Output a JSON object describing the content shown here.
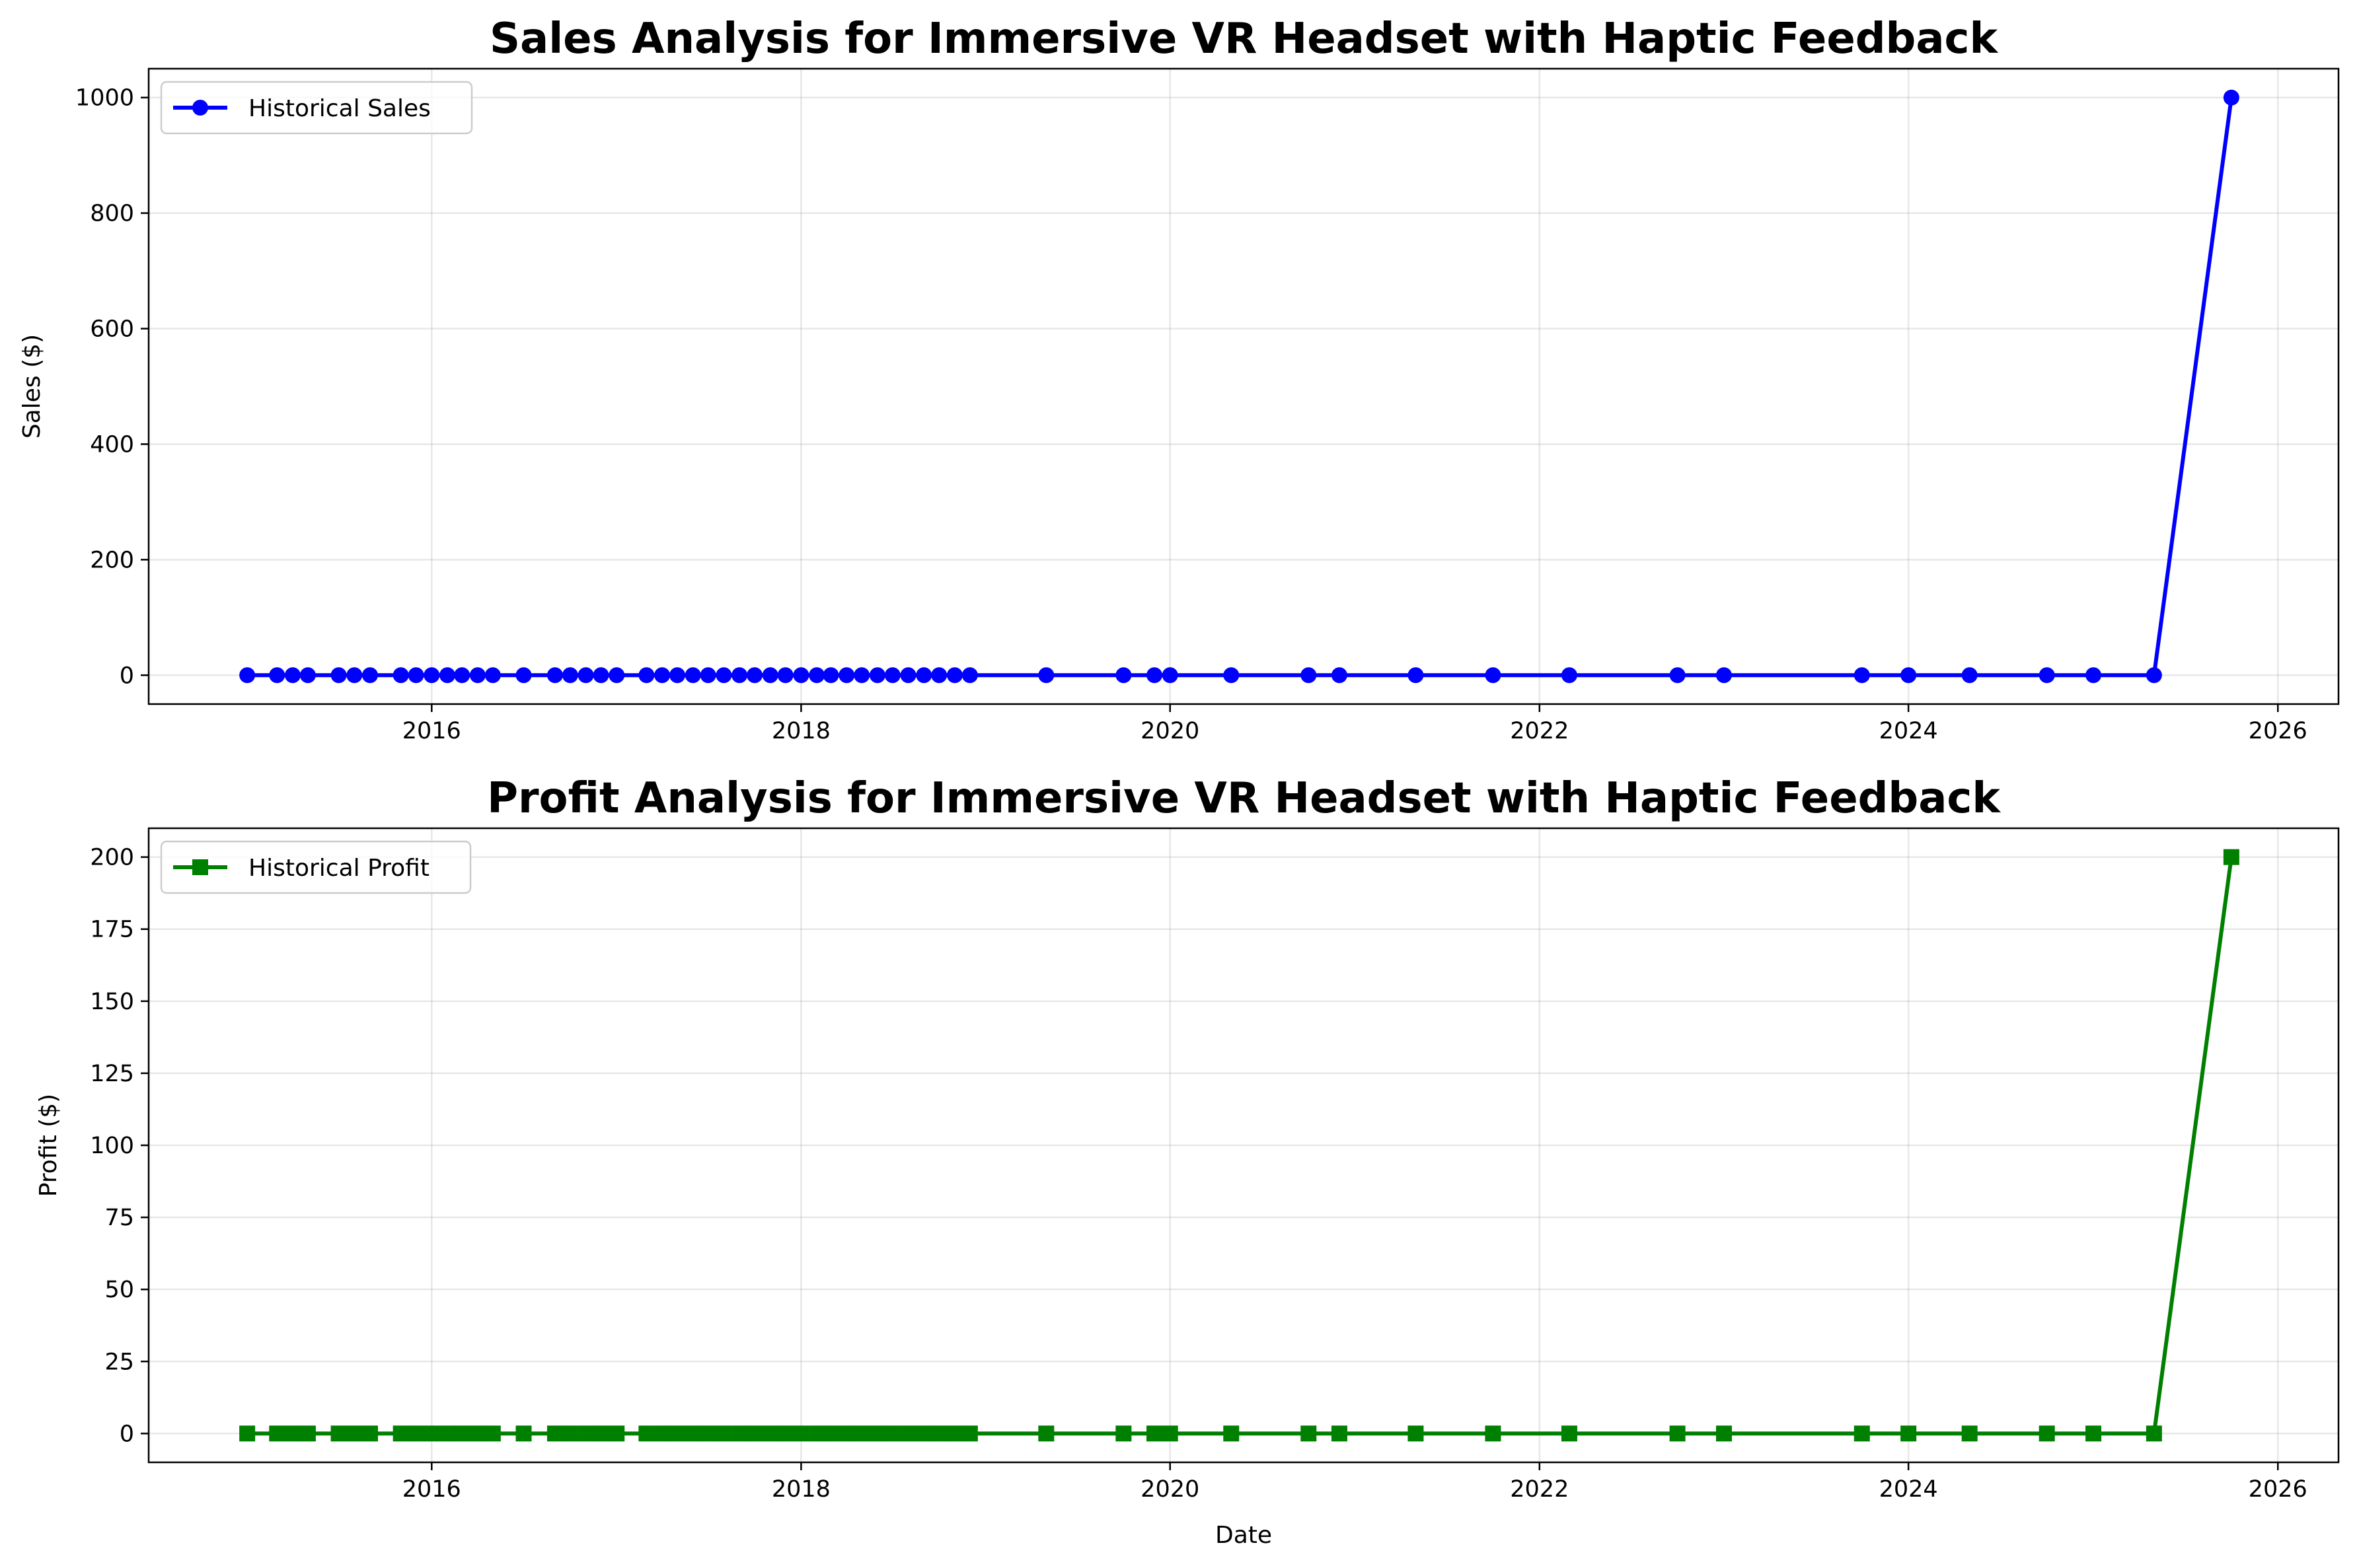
{
  "chart_data": [
    {
      "type": "line",
      "title": "Sales Analysis for Immersive VR Headset with Haptic Feedback",
      "xlabel": "",
      "ylabel": "Sales ($)",
      "ylim": [
        -50,
        1050
      ],
      "xlim": [
        "2014-06-20",
        "2026-05-01"
      ],
      "yticks": [
        0,
        200,
        400,
        600,
        800,
        1000
      ],
      "xticks": [
        "2016",
        "2018",
        "2020",
        "2022",
        "2024",
        "2026"
      ],
      "grid": true,
      "legend_position": "top-left",
      "series": [
        {
          "name": "Historical Sales",
          "color": "#0000ff",
          "marker": "circle",
          "x": [
            "2015-01-01",
            "2015-03-01",
            "2015-04-01",
            "2015-05-01",
            "2015-07-01",
            "2015-08-01",
            "2015-09-01",
            "2015-11-01",
            "2015-12-01",
            "2016-01-01",
            "2016-02-01",
            "2016-03-01",
            "2016-04-01",
            "2016-05-01",
            "2016-07-01",
            "2016-09-01",
            "2016-10-01",
            "2016-11-01",
            "2016-12-01",
            "2017-01-01",
            "2017-03-01",
            "2017-04-01",
            "2017-05-01",
            "2017-06-01",
            "2017-07-01",
            "2017-08-01",
            "2017-09-01",
            "2017-10-01",
            "2017-11-01",
            "2017-12-01",
            "2018-01-01",
            "2018-02-01",
            "2018-03-01",
            "2018-04-01",
            "2018-05-01",
            "2018-06-01",
            "2018-07-01",
            "2018-08-01",
            "2018-09-01",
            "2018-10-01",
            "2018-11-01",
            "2018-12-01",
            "2019-05-01",
            "2019-10-01",
            "2019-12-01",
            "2020-01-01",
            "2020-05-01",
            "2020-10-01",
            "2020-12-01",
            "2021-05-01",
            "2021-10-01",
            "2022-03-01",
            "2022-10-01",
            "2023-01-01",
            "2023-10-01",
            "2024-01-01",
            "2024-05-01",
            "2024-10-01",
            "2025-01-01",
            "2025-05-01",
            "2025-10-01"
          ],
          "values": [
            0,
            0,
            0,
            0,
            0,
            0,
            0,
            0,
            0,
            0,
            0,
            0,
            0,
            0,
            0,
            0,
            0,
            0,
            0,
            0,
            0,
            0,
            0,
            0,
            0,
            0,
            0,
            0,
            0,
            0,
            0,
            0,
            0,
            0,
            0,
            0,
            0,
            0,
            0,
            0,
            0,
            0,
            0,
            0,
            0,
            0,
            0,
            0,
            0,
            0,
            0,
            0,
            0,
            0,
            0,
            0,
            0,
            0,
            0,
            0,
            1000
          ]
        }
      ]
    },
    {
      "type": "line",
      "title": "Profit Analysis for Immersive VR Headset with Haptic Feedback",
      "xlabel": "Date",
      "ylabel": "Profit ($)",
      "ylim": [
        -10,
        210
      ],
      "xlim": [
        "2014-06-20",
        "2026-05-01"
      ],
      "yticks": [
        0,
        25,
        50,
        75,
        100,
        125,
        150,
        175,
        200
      ],
      "xticks": [
        "2016",
        "2018",
        "2020",
        "2022",
        "2024",
        "2026"
      ],
      "grid": true,
      "legend_position": "top-left",
      "series": [
        {
          "name": "Historical Profit",
          "color": "#008000",
          "marker": "square",
          "x": [
            "2015-01-01",
            "2015-03-01",
            "2015-04-01",
            "2015-05-01",
            "2015-07-01",
            "2015-08-01",
            "2015-09-01",
            "2015-11-01",
            "2015-12-01",
            "2016-01-01",
            "2016-02-01",
            "2016-03-01",
            "2016-04-01",
            "2016-05-01",
            "2016-07-01",
            "2016-09-01",
            "2016-10-01",
            "2016-11-01",
            "2016-12-01",
            "2017-01-01",
            "2017-03-01",
            "2017-04-01",
            "2017-05-01",
            "2017-06-01",
            "2017-07-01",
            "2017-08-01",
            "2017-09-01",
            "2017-10-01",
            "2017-11-01",
            "2017-12-01",
            "2018-01-01",
            "2018-02-01",
            "2018-03-01",
            "2018-04-01",
            "2018-05-01",
            "2018-06-01",
            "2018-07-01",
            "2018-08-01",
            "2018-09-01",
            "2018-10-01",
            "2018-11-01",
            "2018-12-01",
            "2019-05-01",
            "2019-10-01",
            "2019-12-01",
            "2020-01-01",
            "2020-05-01",
            "2020-10-01",
            "2020-12-01",
            "2021-05-01",
            "2021-10-01",
            "2022-03-01",
            "2022-10-01",
            "2023-01-01",
            "2023-10-01",
            "2024-01-01",
            "2024-05-01",
            "2024-10-01",
            "2025-01-01",
            "2025-05-01",
            "2025-10-01"
          ],
          "values": [
            0,
            0,
            0,
            0,
            0,
            0,
            0,
            0,
            0,
            0,
            0,
            0,
            0,
            0,
            0,
            0,
            0,
            0,
            0,
            0,
            0,
            0,
            0,
            0,
            0,
            0,
            0,
            0,
            0,
            0,
            0,
            0,
            0,
            0,
            0,
            0,
            0,
            0,
            0,
            0,
            0,
            0,
            0,
            0,
            0,
            0,
            0,
            0,
            0,
            0,
            0,
            0,
            0,
            0,
            0,
            0,
            0,
            0,
            0,
            0,
            200
          ]
        }
      ]
    }
  ]
}
